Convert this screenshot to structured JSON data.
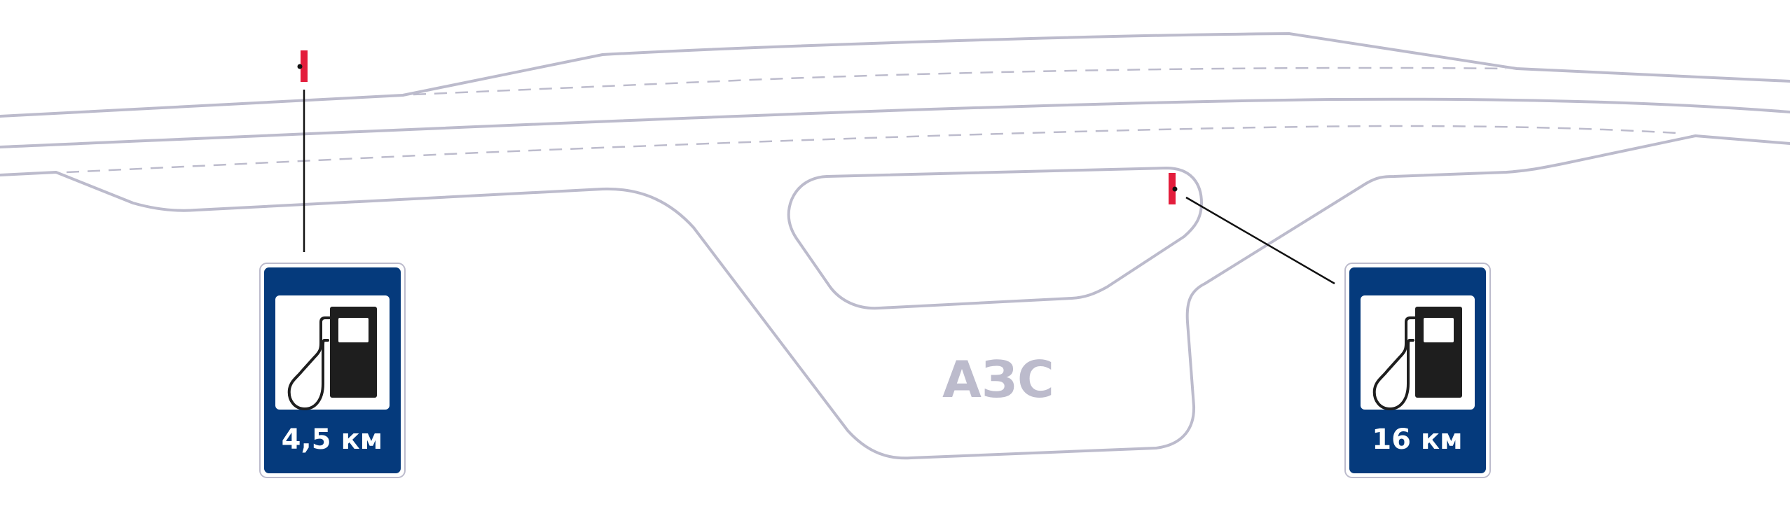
{
  "diagram": {
    "zone_label": "АЗС",
    "signs": [
      {
        "id": "sign-left",
        "distance": "4,5 км",
        "icon": "fuel-pump-icon"
      },
      {
        "id": "sign-right",
        "distance": "16 км",
        "icon": "fuel-pump-icon"
      }
    ],
    "colors": {
      "road_outline": "#bcbbcc",
      "sign_background": "#053a7c",
      "sign_post_marker": "#e31d3c",
      "pump_icon": "#1e1e1e",
      "leader_line": "#111111"
    }
  }
}
